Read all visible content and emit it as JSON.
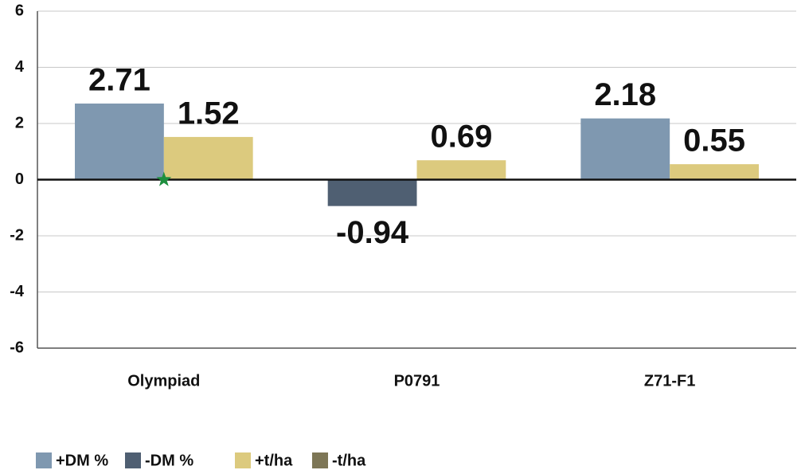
{
  "chart_data": {
    "type": "bar",
    "categories": [
      "Olympiad",
      "P0791",
      "Z71-F1"
    ],
    "series": [
      {
        "name": "+DM %",
        "color": "#7f98b0",
        "values": [
          2.71,
          null,
          2.18
        ]
      },
      {
        "name": "-DM %",
        "color": "#4f5f72",
        "values": [
          null,
          -0.94,
          null
        ]
      },
      {
        "name": "+t/ha",
        "color": "#dcca7e",
        "values": [
          1.52,
          0.69,
          0.55
        ]
      },
      {
        "name": "-t/ha",
        "color": "#7d7656",
        "values": [
          null,
          null,
          null
        ]
      }
    ],
    "ylim": [
      -6,
      6
    ],
    "yticks": [
      -6,
      -4,
      -2,
      0,
      2,
      4,
      6
    ],
    "grid": true,
    "legend": "bottom"
  }
}
